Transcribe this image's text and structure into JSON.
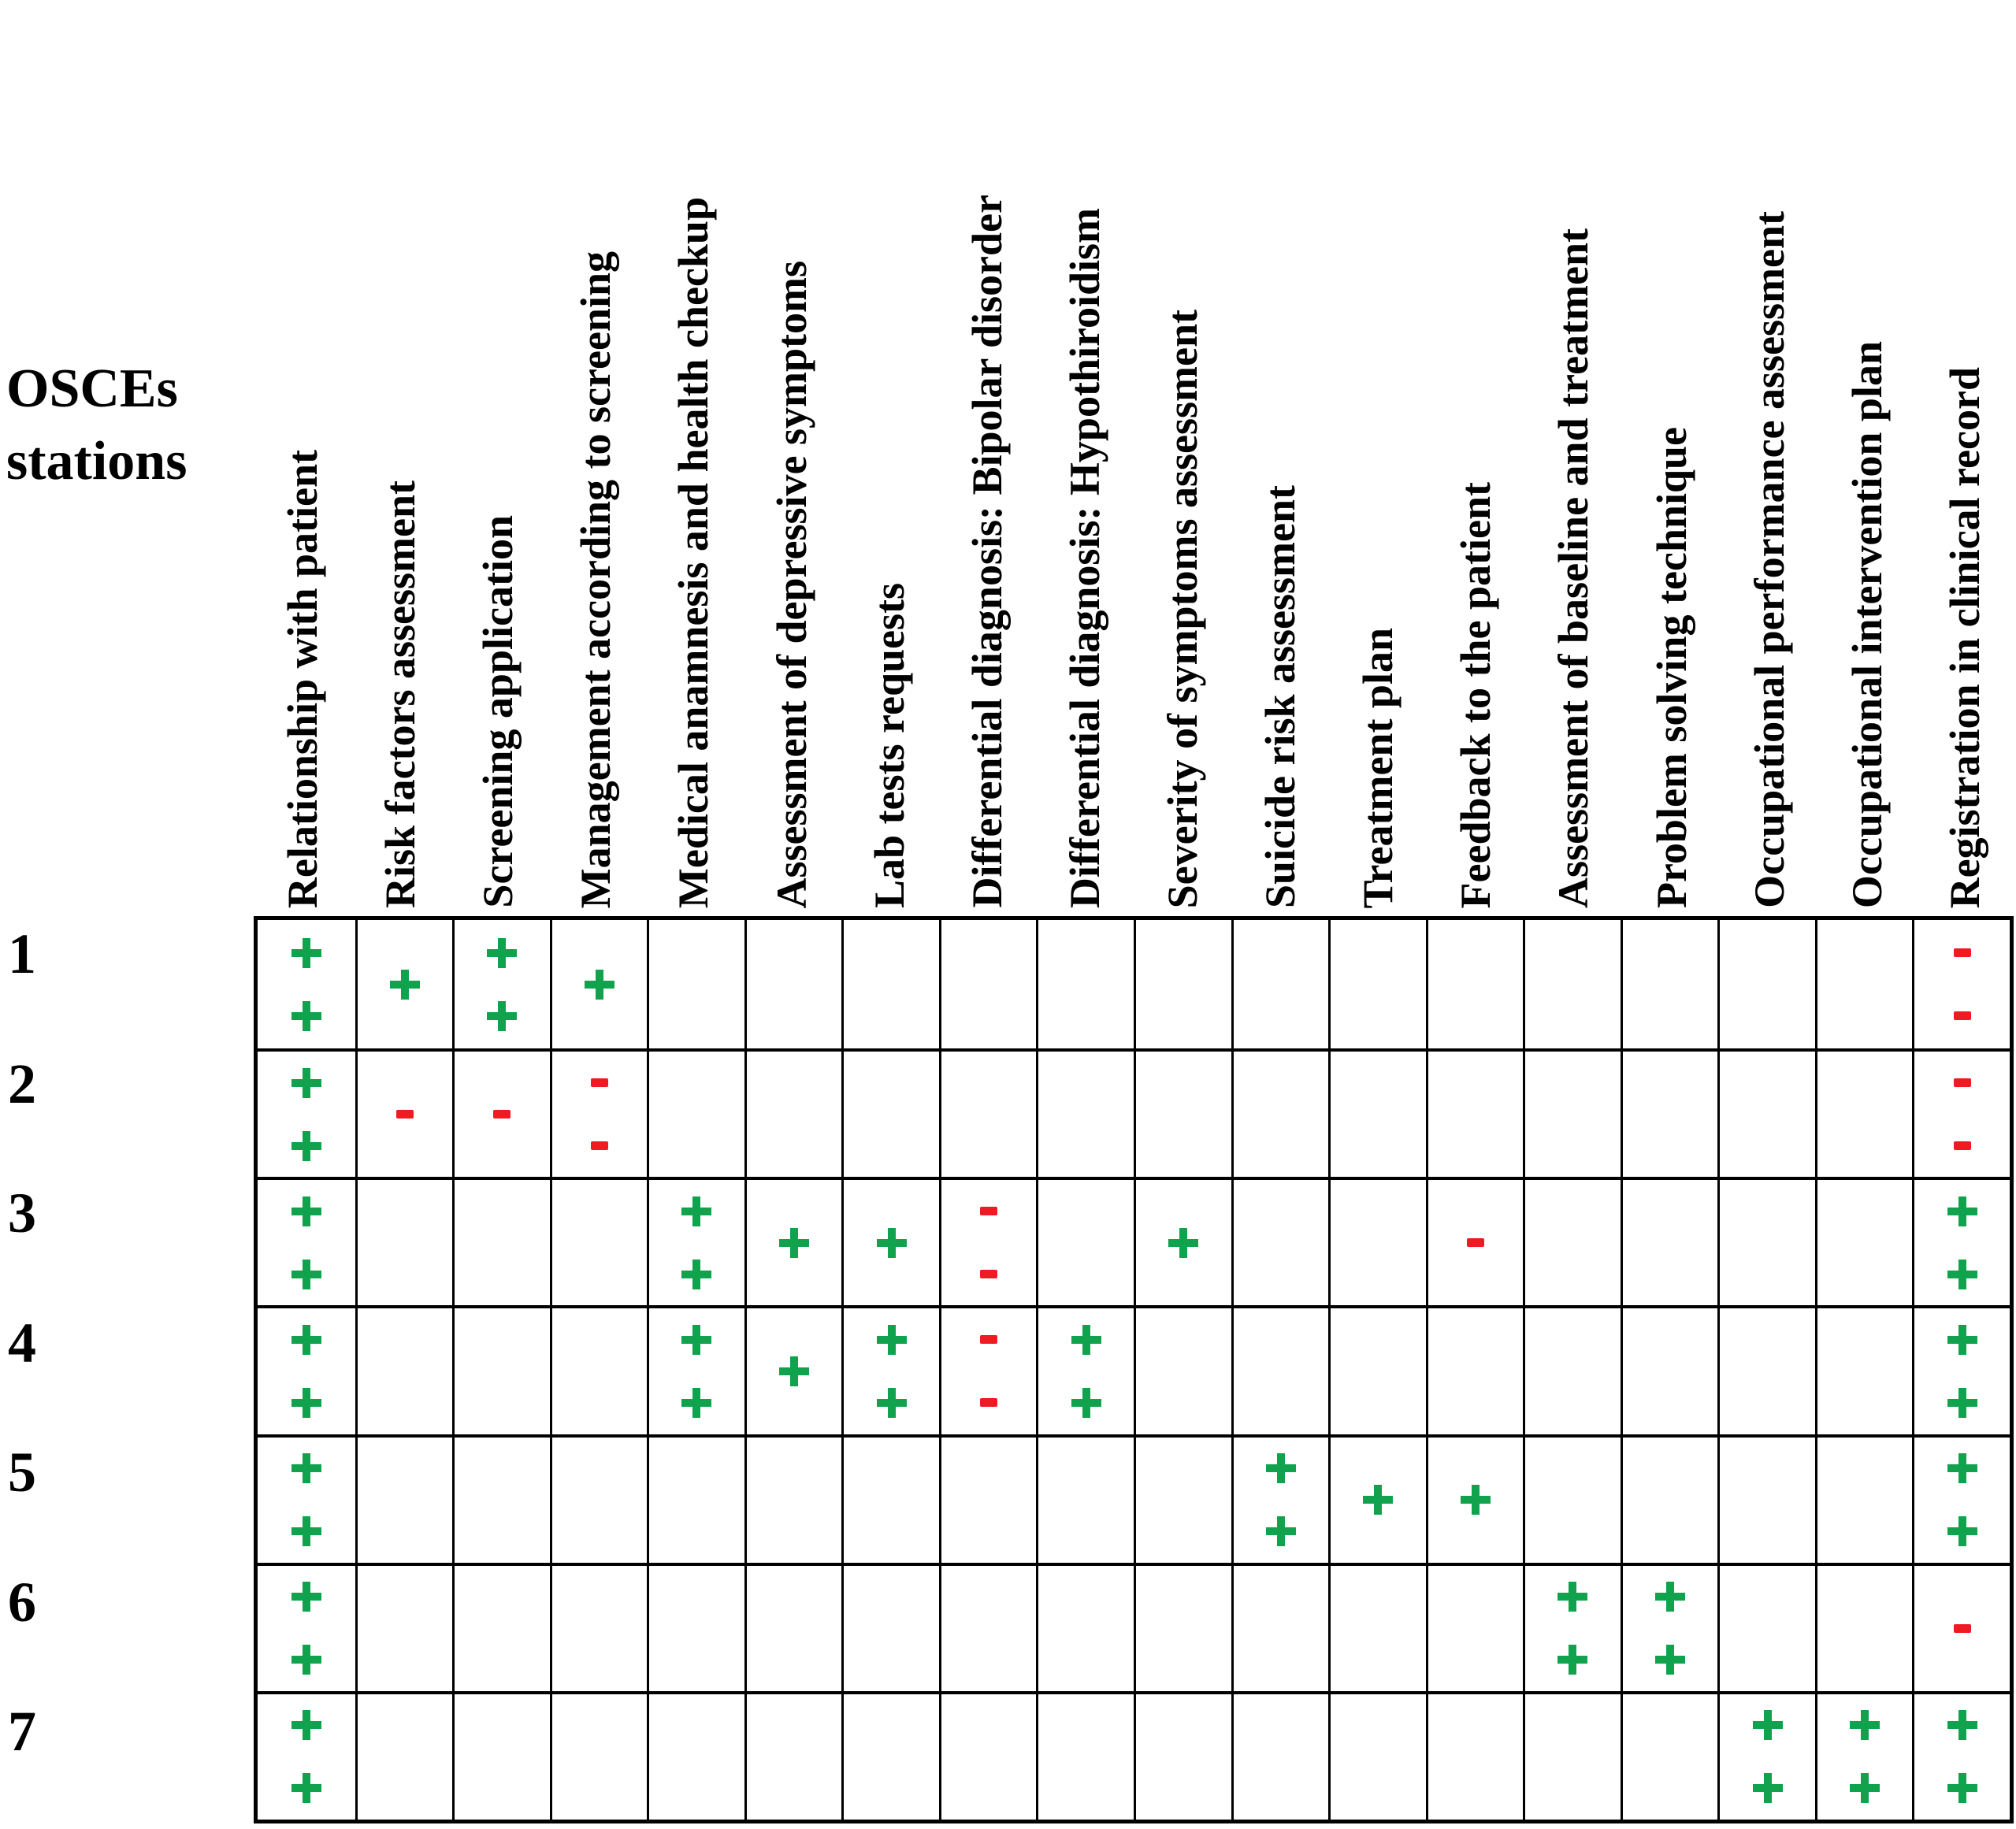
{
  "figure_label": {
    "line1": "OSCEs",
    "line2": "stations"
  },
  "legend": {
    "plus_symbol": "+",
    "minus_symbol": "-",
    "plus_color": "#10a24c",
    "minus_color": "#ee1b23",
    "grid_color": "#000000"
  },
  "table": {
    "columns": [
      "Relationship with patient",
      "Risk factors assessment",
      "Screening application",
      "Management according to screening",
      "Medical anamnesis and health checkup",
      "Assessment of depressive symptoms",
      "Lab tests requests",
      "Differential diagnosis: Bipolar disorder",
      "Differential diagnosis: Hypothiroidism",
      "Severity of symptoms assessment",
      "Suicide risk assessment",
      "Treatment plan",
      "Feedback to the patient",
      "Assessment of baseline and treatment",
      "Problem solving technique",
      "Occupational performance assessment",
      "Occupational intervention plan",
      "Registration in clinical record"
    ],
    "rows": [
      {
        "station": "1",
        "marks": [
          "++",
          "+",
          "++",
          "+",
          "",
          "",
          "",
          "",
          "",
          "",
          "",
          "",
          "",
          "",
          "",
          "",
          "",
          "--"
        ]
      },
      {
        "station": "2",
        "marks": [
          "++",
          "-",
          "-",
          "--",
          "",
          "",
          "",
          "",
          "",
          "",
          "",
          "",
          "",
          "",
          "",
          "",
          "",
          "--"
        ]
      },
      {
        "station": "3",
        "marks": [
          "++",
          "",
          "",
          "",
          "++",
          "+",
          "+",
          "--",
          "",
          "+",
          "",
          "",
          "-",
          "",
          "",
          "",
          "",
          "++"
        ]
      },
      {
        "station": "4",
        "marks": [
          "++",
          "",
          "",
          "",
          "++",
          "+",
          "++",
          "--",
          "++",
          "",
          "",
          "",
          "",
          "",
          "",
          "",
          "",
          "++"
        ]
      },
      {
        "station": "5",
        "marks": [
          "++",
          "",
          "",
          "",
          "",
          "",
          "",
          "",
          "",
          "",
          "++",
          "+",
          "+",
          "",
          "",
          "",
          "",
          "++"
        ]
      },
      {
        "station": "6",
        "marks": [
          "++",
          "",
          "",
          "",
          "",
          "",
          "",
          "",
          "",
          "",
          "",
          "",
          "",
          "++",
          "++",
          "",
          "",
          "-"
        ]
      },
      {
        "station": "7",
        "marks": [
          "++",
          "",
          "",
          "",
          "",
          "",
          "",
          "",
          "",
          "",
          "",
          "",
          "",
          "",
          "",
          "++",
          "++",
          "++"
        ]
      }
    ]
  }
}
